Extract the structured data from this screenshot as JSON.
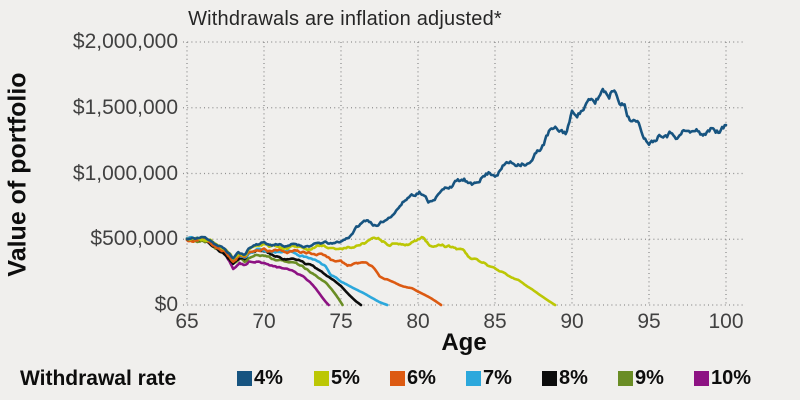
{
  "legend": {
    "title": "Withdrawal rate"
  },
  "chart_data": {
    "type": "line",
    "title": "Withdrawals are inflation adjusted*",
    "xlabel": "Age",
    "ylabel": "Value of portfolio",
    "xlim": [
      65,
      100
    ],
    "ylim": [
      0,
      2000000
    ],
    "grid": "dotted",
    "background_color": "#f0efed",
    "gridline_color": "#8f8f8f",
    "legend_position": "bottom",
    "x_ticks": [
      {
        "value": 65,
        "label": "65"
      },
      {
        "value": 70,
        "label": "70"
      },
      {
        "value": 75,
        "label": "75"
      },
      {
        "value": 80,
        "label": "80"
      },
      {
        "value": 85,
        "label": "85"
      },
      {
        "value": 90,
        "label": "90"
      },
      {
        "value": 95,
        "label": "95"
      },
      {
        "value": 100,
        "label": "100"
      }
    ],
    "y_ticks": [
      {
        "value": 0,
        "label": "$0"
      },
      {
        "value": 500000,
        "label": "$500,000"
      },
      {
        "value": 1000000,
        "label": "$1,000,000"
      },
      {
        "value": 1500000,
        "label": "$1,500,000"
      },
      {
        "value": 2000000,
        "label": "$2,000,000"
      }
    ],
    "series": [
      {
        "name": "4%",
        "color": "#175480",
        "points": [
          [
            65,
            500000
          ],
          [
            65.5,
            503000
          ],
          [
            66,
            512000
          ],
          [
            66.5,
            498000
          ],
          [
            67,
            455000
          ],
          [
            67.5,
            420000
          ],
          [
            68,
            355000
          ],
          [
            68.3,
            400000
          ],
          [
            68.7,
            375000
          ],
          [
            69,
            430000
          ],
          [
            69.5,
            465000
          ],
          [
            70,
            478000
          ],
          [
            70.5,
            455000
          ],
          [
            71,
            468000
          ],
          [
            71.5,
            445000
          ],
          [
            72,
            462000
          ],
          [
            72.5,
            450000
          ],
          [
            73,
            455000
          ],
          [
            73.5,
            465000
          ],
          [
            74,
            470000
          ],
          [
            74.5,
            460000
          ],
          [
            75,
            480000
          ],
          [
            75.5,
            515000
          ],
          [
            76,
            590000
          ],
          [
            76.7,
            648000
          ],
          [
            77.4,
            595000
          ],
          [
            78,
            650000
          ],
          [
            78.8,
            760000
          ],
          [
            79.5,
            838000
          ],
          [
            80.1,
            875000
          ],
          [
            80.7,
            785000
          ],
          [
            81.2,
            838000
          ],
          [
            82,
            900000
          ],
          [
            82.4,
            935000
          ],
          [
            83,
            945000
          ],
          [
            83.5,
            890000
          ],
          [
            84.1,
            975000
          ],
          [
            84.6,
            1010000
          ],
          [
            85,
            1005000
          ],
          [
            85.8,
            1090000
          ],
          [
            86.3,
            1070000
          ],
          [
            86.8,
            1105000
          ],
          [
            87.3,
            1090000
          ],
          [
            88,
            1200000
          ],
          [
            88.6,
            1330000
          ],
          [
            89,
            1310000
          ],
          [
            89.6,
            1305000
          ],
          [
            90,
            1450000
          ],
          [
            90.5,
            1480000
          ],
          [
            91,
            1545000
          ],
          [
            91.5,
            1520000
          ],
          [
            92,
            1630000
          ],
          [
            92.4,
            1600000
          ],
          [
            92.7,
            1665000
          ],
          [
            93,
            1610000
          ],
          [
            93.4,
            1545000
          ],
          [
            93.6,
            1450000
          ],
          [
            94,
            1420000
          ],
          [
            94.4,
            1350000
          ],
          [
            94.8,
            1270000
          ],
          [
            95.2,
            1265000
          ],
          [
            95.6,
            1320000
          ],
          [
            96,
            1355000
          ],
          [
            96.5,
            1340000
          ],
          [
            97,
            1320000
          ],
          [
            97.3,
            1345000
          ],
          [
            97.7,
            1310000
          ],
          [
            98,
            1325000
          ],
          [
            98.4,
            1300000
          ],
          [
            98.8,
            1320000
          ],
          [
            99.2,
            1345000
          ],
          [
            99.6,
            1330000
          ],
          [
            100,
            1360000
          ]
        ]
      },
      {
        "name": "5%",
        "color": "#bcc705",
        "points": [
          [
            65,
            500000
          ],
          [
            65.5,
            502000
          ],
          [
            66,
            508000
          ],
          [
            66.5,
            492000
          ],
          [
            67,
            450000
          ],
          [
            67.5,
            410000
          ],
          [
            68,
            345000
          ],
          [
            68.4,
            390000
          ],
          [
            68.8,
            365000
          ],
          [
            69,
            415000
          ],
          [
            69.5,
            450000
          ],
          [
            70,
            458000
          ],
          [
            70.5,
            440000
          ],
          [
            71,
            450000
          ],
          [
            71.5,
            435000
          ],
          [
            72,
            455000
          ],
          [
            72.5,
            438000
          ],
          [
            73,
            442000
          ],
          [
            73.5,
            448000
          ],
          [
            74,
            440000
          ],
          [
            74.5,
            428000
          ],
          [
            75,
            432000
          ],
          [
            75.5,
            438000
          ],
          [
            76,
            445000
          ],
          [
            76.5,
            470000
          ],
          [
            77,
            478000
          ],
          [
            77.5,
            482000
          ],
          [
            78,
            458000
          ],
          [
            78.5,
            468000
          ],
          [
            79,
            472000
          ],
          [
            79.5,
            485000
          ],
          [
            80,
            502000
          ],
          [
            80.4,
            508000
          ],
          [
            80.8,
            448000
          ],
          [
            81.2,
            468000
          ],
          [
            81.6,
            478000
          ],
          [
            82,
            455000
          ],
          [
            82.5,
            420000
          ],
          [
            83,
            400000
          ],
          [
            83.4,
            345000
          ],
          [
            83.8,
            342000
          ],
          [
            84.2,
            330000
          ],
          [
            84.6,
            300000
          ],
          [
            85,
            268000
          ],
          [
            85.5,
            250000
          ],
          [
            86,
            208000
          ],
          [
            86.5,
            190000
          ],
          [
            87,
            150000
          ],
          [
            87.5,
            110000
          ],
          [
            88,
            70000
          ],
          [
            88.5,
            30000
          ],
          [
            88.9,
            0
          ]
        ]
      },
      {
        "name": "6%",
        "color": "#dc5a12",
        "points": [
          [
            65,
            500000
          ],
          [
            65.5,
            501000
          ],
          [
            66,
            506000
          ],
          [
            66.5,
            488000
          ],
          [
            67,
            445000
          ],
          [
            67.5,
            405000
          ],
          [
            68,
            338000
          ],
          [
            68.4,
            380000
          ],
          [
            68.8,
            355000
          ],
          [
            69,
            400000
          ],
          [
            69.5,
            425000
          ],
          [
            70,
            432000
          ],
          [
            70.5,
            415000
          ],
          [
            71,
            422000
          ],
          [
            71.5,
            408000
          ],
          [
            72,
            430000
          ],
          [
            72.5,
            415000
          ],
          [
            73,
            412000
          ],
          [
            73.5,
            400000
          ],
          [
            74,
            385000
          ],
          [
            74.3,
            355000
          ],
          [
            74.7,
            330000
          ],
          [
            75,
            322000
          ],
          [
            75.4,
            292000
          ],
          [
            75.8,
            305000
          ],
          [
            76.2,
            312000
          ],
          [
            76.6,
            322000
          ],
          [
            77,
            295000
          ],
          [
            77.5,
            215000
          ],
          [
            78,
            195000
          ],
          [
            78.4,
            175000
          ],
          [
            78.8,
            152000
          ],
          [
            79.2,
            140000
          ],
          [
            79.6,
            128000
          ],
          [
            80,
            102000
          ],
          [
            80.4,
            80000
          ],
          [
            80.8,
            55000
          ],
          [
            81.2,
            25000
          ],
          [
            81.5,
            0
          ]
        ]
      },
      {
        "name": "7%",
        "color": "#2ca8dc",
        "points": [
          [
            65,
            500000
          ],
          [
            65.5,
            501000
          ],
          [
            66,
            505000
          ],
          [
            66.5,
            485000
          ],
          [
            67,
            442000
          ],
          [
            67.5,
            400000
          ],
          [
            68,
            330000
          ],
          [
            68.4,
            372000
          ],
          [
            68.8,
            350000
          ],
          [
            69,
            392000
          ],
          [
            69.5,
            412000
          ],
          [
            70,
            420000
          ],
          [
            70.5,
            402000
          ],
          [
            71,
            408000
          ],
          [
            71.5,
            390000
          ],
          [
            72,
            398000
          ],
          [
            72.5,
            378000
          ],
          [
            73,
            355000
          ],
          [
            73.5,
            330000
          ],
          [
            74,
            295000
          ],
          [
            74.3,
            240000
          ],
          [
            74.7,
            205000
          ],
          [
            75,
            178000
          ],
          [
            75.5,
            150000
          ],
          [
            76,
            118000
          ],
          [
            76.5,
            90000
          ],
          [
            77,
            55000
          ],
          [
            77.5,
            22000
          ],
          [
            78,
            0
          ]
        ]
      },
      {
        "name": "8%",
        "color": "#0c0c0c",
        "points": [
          [
            65,
            500000
          ],
          [
            65.5,
            500000
          ],
          [
            66,
            503000
          ],
          [
            66.5,
            482000
          ],
          [
            67,
            438000
          ],
          [
            67.5,
            395000
          ],
          [
            68,
            322000
          ],
          [
            68.4,
            365000
          ],
          [
            68.8,
            342000
          ],
          [
            69,
            380000
          ],
          [
            69.5,
            395000
          ],
          [
            70,
            398000
          ],
          [
            70.5,
            380000
          ],
          [
            71,
            378000
          ],
          [
            71.5,
            355000
          ],
          [
            72,
            360000
          ],
          [
            72.5,
            330000
          ],
          [
            73,
            300000
          ],
          [
            73.5,
            262000
          ],
          [
            74,
            228000
          ],
          [
            74.5,
            185000
          ],
          [
            75,
            140000
          ],
          [
            75.5,
            80000
          ],
          [
            76,
            25000
          ],
          [
            76.3,
            0
          ]
        ]
      },
      {
        "name": "9%",
        "color": "#6a8d25",
        "points": [
          [
            65,
            500000
          ],
          [
            65.5,
            499000
          ],
          [
            66,
            501000
          ],
          [
            66.5,
            478000
          ],
          [
            67,
            432000
          ],
          [
            67.5,
            388000
          ],
          [
            68,
            312000
          ],
          [
            68.4,
            355000
          ],
          [
            68.8,
            330000
          ],
          [
            69,
            365000
          ],
          [
            69.5,
            375000
          ],
          [
            70,
            372000
          ],
          [
            70.5,
            352000
          ],
          [
            71,
            342000
          ],
          [
            71.5,
            318000
          ],
          [
            72,
            315000
          ],
          [
            72.5,
            285000
          ],
          [
            73,
            252000
          ],
          [
            73.5,
            215000
          ],
          [
            74,
            175000
          ],
          [
            74.4,
            120000
          ],
          [
            74.8,
            55000
          ],
          [
            75.1,
            0
          ]
        ]
      },
      {
        "name": "10%",
        "color": "#8d1283",
        "points": [
          [
            65,
            500000
          ],
          [
            65.5,
            498000
          ],
          [
            66,
            499000
          ],
          [
            66.5,
            474000
          ],
          [
            67,
            428000
          ],
          [
            67.5,
            382000
          ],
          [
            68,
            280000
          ],
          [
            68.4,
            330000
          ],
          [
            68.8,
            310000
          ],
          [
            69,
            338000
          ],
          [
            69.5,
            340000
          ],
          [
            70,
            318000
          ],
          [
            70.5,
            300000
          ],
          [
            71,
            285000
          ],
          [
            71.5,
            262000
          ],
          [
            72,
            245000
          ],
          [
            72.5,
            215000
          ],
          [
            73,
            172000
          ],
          [
            73.4,
            120000
          ],
          [
            73.7,
            70000
          ],
          [
            74,
            25000
          ],
          [
            74.2,
            0
          ]
        ]
      }
    ]
  }
}
